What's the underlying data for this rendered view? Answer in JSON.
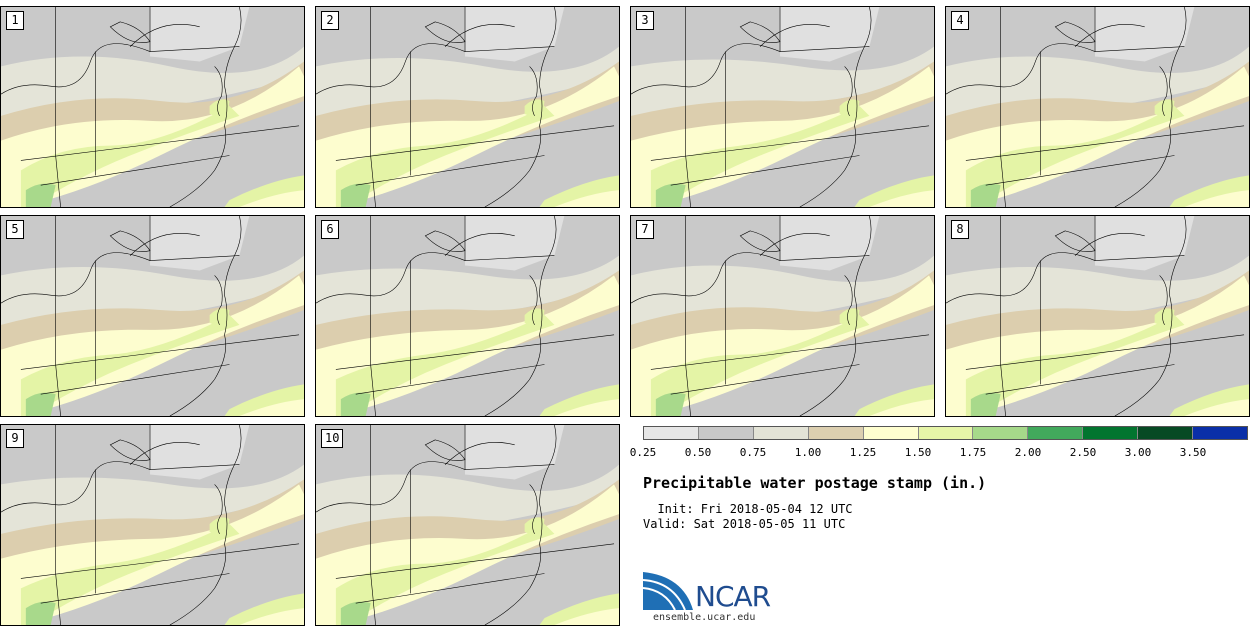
{
  "members": [
    {
      "label": "1"
    },
    {
      "label": "2"
    },
    {
      "label": "3"
    },
    {
      "label": "4"
    },
    {
      "label": "5"
    },
    {
      "label": "6"
    },
    {
      "label": "7"
    },
    {
      "label": "8"
    },
    {
      "label": "9"
    },
    {
      "label": "10"
    }
  ],
  "colorbar": {
    "colors": [
      "#e6e6e6",
      "#c8c8c8",
      "#e3e3d6",
      "#dccfb0",
      "#fefecf",
      "#e6f5a8",
      "#a6d98a",
      "#42a95c",
      "#02752f",
      "#074a24",
      "#0a2fa8"
    ],
    "tick_labels": [
      "0.25",
      "0.50",
      "0.75",
      "1.00",
      "1.25",
      "1.50",
      "1.75",
      "2.00",
      "2.50",
      "3.00",
      "3.50"
    ]
  },
  "title": "Precipitable water postage stamp (in.)",
  "init_line": "  Init: Fri 2018-05-04 12 UTC",
  "valid_line": "Valid: Sat 2018-05-05 11 UTC",
  "logo_text": "NCAR",
  "url": "ensemble.ucar.edu",
  "map_colors": {
    "dry": "#c9c9c9",
    "light": "#e0e0e0",
    "mid": "#e4e4d8",
    "tan": "#dcceae",
    "cream": "#fdfdcf",
    "green": "#e4f4a6",
    "midgreen": "#a8d98b"
  }
}
